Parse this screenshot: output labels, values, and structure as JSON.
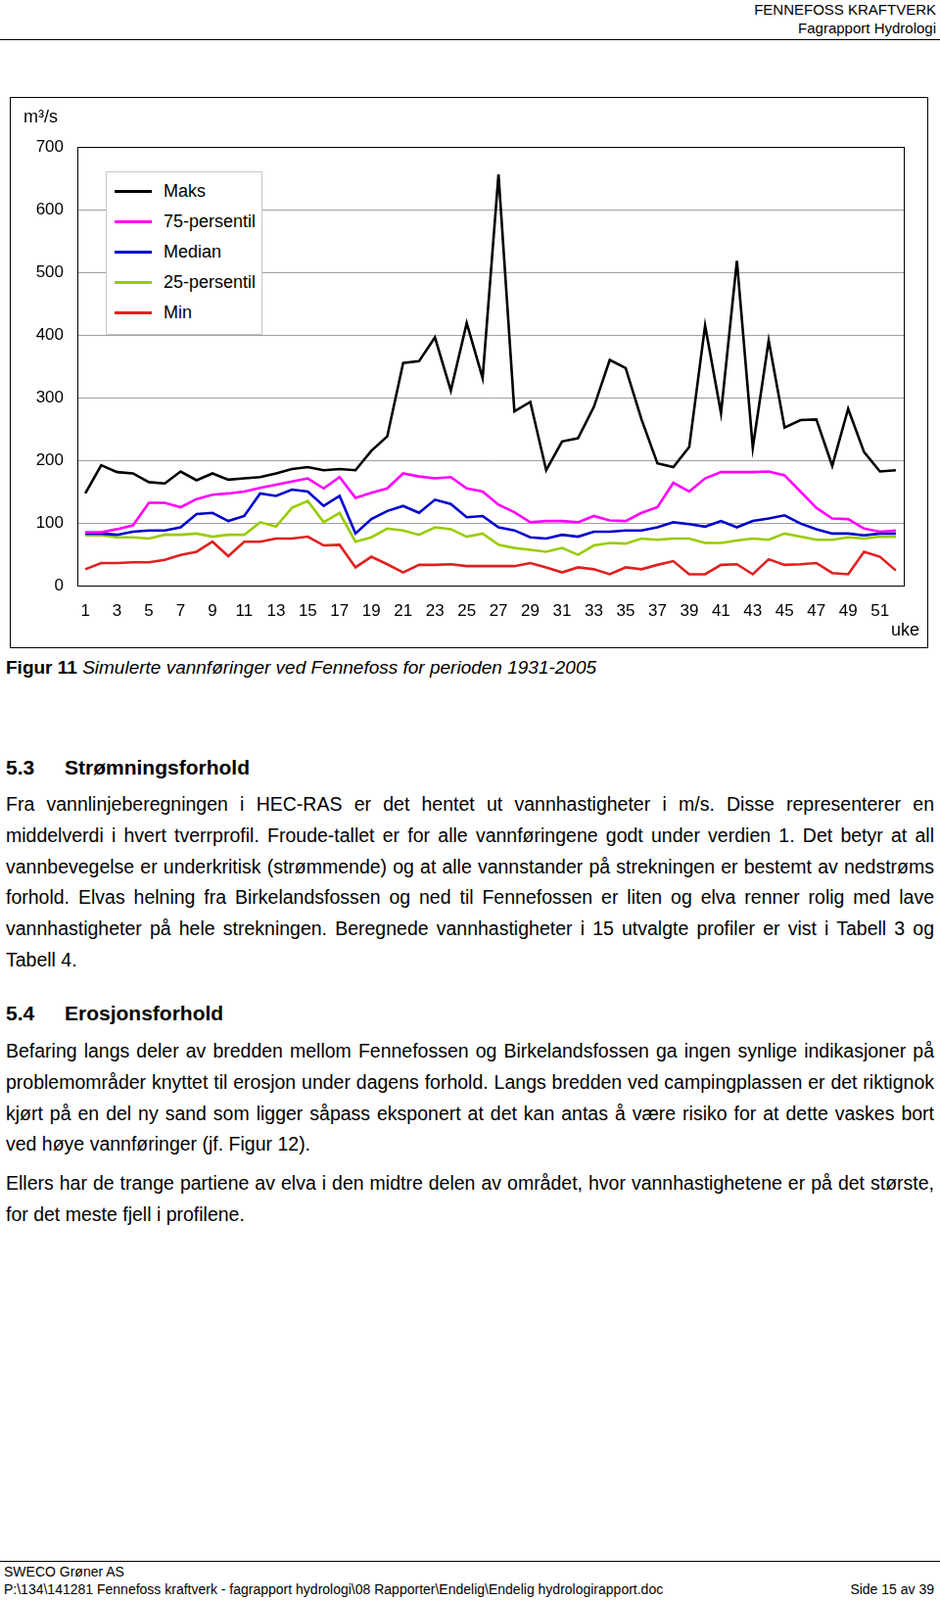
{
  "header": {
    "lines": [
      "FENNEFOSS KRAFTVERK",
      "Fagrapport Hydrologi"
    ]
  },
  "chart_data": {
    "type": "line",
    "y_label": "m³/s",
    "x_label": "uke",
    "categories": [
      1,
      null,
      3,
      null,
      5,
      null,
      7,
      null,
      9,
      null,
      11,
      null,
      13,
      null,
      15,
      null,
      17,
      null,
      19,
      null,
      21,
      null,
      23,
      null,
      25,
      null,
      27,
      null,
      29,
      null,
      31,
      null,
      33,
      null,
      35,
      null,
      37,
      null,
      39,
      null,
      41,
      null,
      43,
      null,
      45,
      null,
      47,
      null,
      49,
      null,
      51,
      null
    ],
    "series": [
      {
        "name": "Maks",
        "color": "#000000",
        "values": [
          147,
          192,
          181,
          179,
          165,
          163,
          182,
          168,
          179,
          169,
          171,
          173,
          179,
          186,
          189,
          184,
          186,
          184,
          215,
          238,
          355,
          358,
          396,
          311,
          419,
          331,
          656,
          278,
          293,
          184,
          230,
          235,
          285,
          360,
          347,
          265,
          195,
          189,
          221,
          415,
          275,
          518,
          220,
          391,
          252,
          264,
          265,
          191,
          282,
          213,
          182,
          184
        ]
      },
      {
        "name": "75-persentil",
        "color": "#ff00ff",
        "values": [
          85,
          85,
          90,
          96,
          132,
          132,
          125,
          138,
          145,
          147,
          150,
          156,
          161,
          166,
          171,
          155,
          173,
          140,
          148,
          155,
          179,
          174,
          171,
          173,
          155,
          150,
          129,
          117,
          101,
          103,
          103,
          101,
          111,
          104,
          103,
          116,
          125,
          164,
          150,
          171,
          181,
          181,
          181,
          182,
          176,
          150,
          124,
          107,
          106,
          91,
          86,
          88
        ]
      },
      {
        "name": "Median",
        "color": "#0000cc",
        "values": [
          83,
          83,
          81,
          86,
          88,
          88,
          93,
          114,
          116,
          103,
          111,
          147,
          143,
          153,
          150,
          127,
          143,
          83,
          106,
          119,
          127,
          116,
          137,
          130,
          109,
          111,
          93,
          88,
          77,
          75,
          81,
          78,
          86,
          86,
          88,
          88,
          93,
          101,
          98,
          94,
          103,
          93,
          103,
          107,
          112,
          99,
          90,
          83,
          83,
          80,
          83,
          83
        ]
      },
      {
        "name": "25-persentil",
        "color": "#99cc00",
        "values": [
          80,
          80,
          77,
          77,
          75,
          81,
          81,
          83,
          78,
          81,
          81,
          101,
          94,
          124,
          135,
          101,
          116,
          70,
          77,
          91,
          88,
          81,
          93,
          90,
          78,
          83,
          65,
          60,
          57,
          54,
          60,
          49,
          64,
          68,
          67,
          75,
          73,
          75,
          75,
          68,
          68,
          72,
          75,
          73,
          83,
          78,
          73,
          73,
          77,
          75,
          78,
          78
        ]
      },
      {
        "name": "Min",
        "color": "#e02020",
        "values": [
          26,
          36,
          36,
          37,
          37,
          41,
          49,
          54,
          70,
          47,
          70,
          70,
          75,
          75,
          78,
          64,
          65,
          29,
          46,
          34,
          21,
          33,
          33,
          34,
          31,
          31,
          31,
          31,
          36,
          29,
          21,
          29,
          26,
          18,
          29,
          26,
          33,
          39,
          18,
          18,
          33,
          34,
          18,
          42,
          33,
          34,
          36,
          20,
          18,
          54,
          46,
          24
        ]
      }
    ],
    "ylim": [
      0,
      700
    ],
    "yticks": [
      0,
      100,
      200,
      300,
      400,
      500,
      600,
      700
    ],
    "grid": true,
    "legend": "upper left"
  },
  "caption": {
    "label": "Figur 11",
    "text": "Simulerte vannføringer ved Fennefoss for perioden 1931-2005"
  },
  "sections": [
    {
      "number": "5.3",
      "title": "Strømningsforhold",
      "paragraphs": [
        "Fra vannlinjeberegningen i HEC-RAS er det hentet ut vannhastigheter i m/s. Disse representerer en middelverdi i hvert tverrprofil. Froude-tallet er for alle vannføringene godt under verdien 1. Det betyr at all vannbevegelse er underkritisk (strømmende) og at alle vannstander på strekningen er bestemt av nedstrøms forhold. Elvas helning fra Birkelandsfossen og ned til Fennefossen er liten og elva renner rolig med lave vannhastigheter på hele strekningen. Beregnede vannhastigheter i 15 utvalgte profiler er vist i Tabell 3 og Tabell 4."
      ]
    },
    {
      "number": "5.4",
      "title": "Erosjonsforhold",
      "paragraphs": [
        "Befaring langs deler av bredden mellom Fennefossen og Birkelandsfossen ga ingen synlige indikasjoner på problemområder knyttet til erosjon under dagens forhold. Langs bredden ved campingplassen er det riktignok kjørt på en del ny sand som ligger såpass eksponert at det kan antas å være risiko for at dette vaskes bort ved høye vannføringer (jf. Figur 12).",
        "Ellers har de trange partiene av elva i den midtre delen av området, hvor vannhastighetene er på det største, for det meste fjell i profilene."
      ]
    }
  ],
  "footer": {
    "company": "SWECO Grøner AS",
    "path": "P:\\134\\141281 Fennefoss kraftverk - fagrapport hydrologi\\08 Rapporter\\Endelig\\Endelig hydrologirapport.doc",
    "page": "Side 15 av 39"
  }
}
